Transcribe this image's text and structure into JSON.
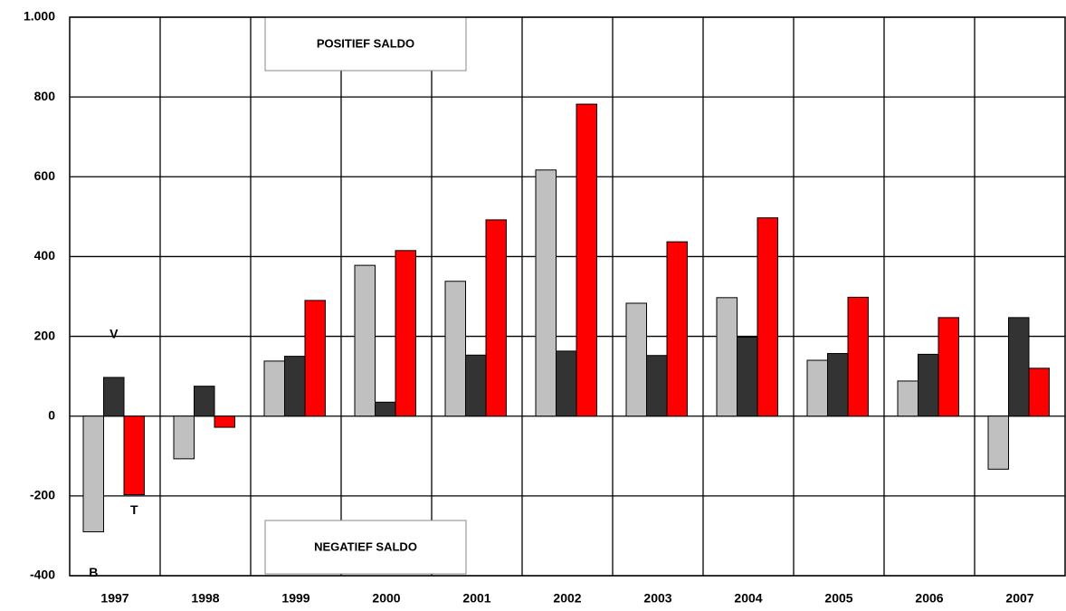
{
  "chart_data": {
    "type": "bar",
    "categories": [
      "1997",
      "1998",
      "1999",
      "2000",
      "2001",
      "2002",
      "2003",
      "2004",
      "2005",
      "2006",
      "2007"
    ],
    "series": [
      {
        "name": "B",
        "color": "#c0c0c0",
        "values": [
          -290,
          -107,
          138,
          378,
          338,
          617,
          283,
          297,
          140,
          88,
          -133
        ]
      },
      {
        "name": "V",
        "color": "#333333",
        "values": [
          97,
          75,
          150,
          35,
          153,
          163,
          152,
          198,
          157,
          155,
          247
        ]
      },
      {
        "name": "T",
        "color": "#ff0000",
        "values": [
          -197,
          -28,
          290,
          415,
          492,
          782,
          437,
          497,
          298,
          247,
          120
        ]
      }
    ],
    "ylim": [
      -400,
      1000
    ],
    "yticks": [
      -400,
      -200,
      0,
      200,
      400,
      600,
      800,
      {
        "value": 1000,
        "label": "1.000"
      }
    ],
    "grid": true,
    "annotations": [
      "POSITIEF SALDO",
      "NEGATIEF SALDO"
    ]
  }
}
